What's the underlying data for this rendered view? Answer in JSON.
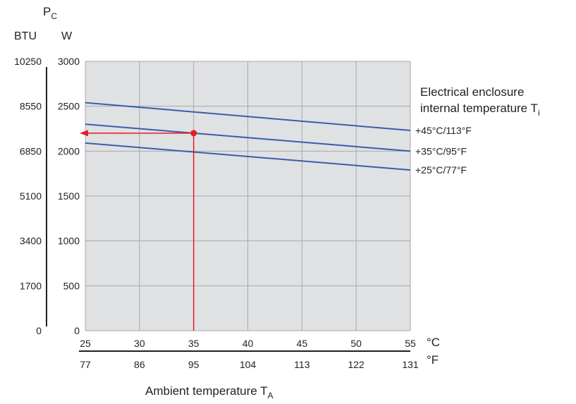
{
  "chart_data": {
    "type": "line",
    "ylabel_main": "P",
    "ylabel_sub": "C",
    "yunit_left": "BTU",
    "yunit_right": "W",
    "x_celsius_ticks": [
      "25",
      "30",
      "35",
      "40",
      "45",
      "50",
      "55"
    ],
    "x_fahrenheit_ticks": [
      "77",
      "86",
      "95",
      "104",
      "113",
      "122",
      "131"
    ],
    "x_celsius_unit": "°C",
    "x_fahrenheit_unit": "°F",
    "x": [
      25,
      55
    ],
    "xlim": [
      25,
      55
    ],
    "ylim": [
      0,
      3000
    ],
    "y_watt_ticks": [
      "0",
      "500",
      "1000",
      "1500",
      "2000",
      "2500",
      "3000"
    ],
    "y_btu_ticks": [
      "0",
      "1700",
      "3400",
      "5100",
      "6850",
      "8550",
      "10250"
    ],
    "xlabel_main": "Ambient temperature T",
    "xlabel_sub": "A",
    "legend_title_line1": "Electrical enclosure",
    "legend_title_line2_main": "internal temperature T",
    "legend_title_line2_sub": "i",
    "grid": true,
    "series": [
      {
        "name": "+45°C/113°F",
        "values": [
          2540,
          2230
        ]
      },
      {
        "name": "+35°C/95°F",
        "values": [
          2300,
          2000
        ]
      },
      {
        "name": "+25°C/77°F",
        "values": [
          2090,
          1790
        ]
      }
    ],
    "example_point": {
      "x": 35,
      "y": 2200
    },
    "colors": {
      "series_line": "#3a5da8",
      "marker": "#e31e24",
      "plot_background": "#e0e1e3",
      "grid": "#a7a9ac",
      "axis": "#231f20"
    }
  }
}
